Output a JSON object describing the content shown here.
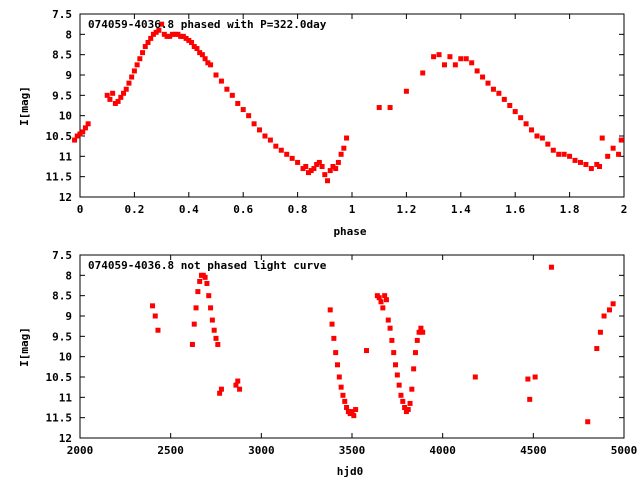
{
  "chart_data": [
    {
      "type": "scatter",
      "title": "074059-4036.8 phased with P=322.0day",
      "xlabel": "phase",
      "ylabel": "I[mag]",
      "xlim": [
        0,
        2
      ],
      "ylim": [
        7.5,
        12
      ],
      "y_inverted": true,
      "xticks": [
        "0",
        "0.2",
        "0.4",
        "0.6",
        "0.8",
        "1",
        "1.2",
        "1.4",
        "1.6",
        "1.8",
        "2"
      ],
      "yticks": [
        "7.5",
        "8",
        "8.5",
        "9",
        "9.5",
        "10",
        "10.5",
        "11",
        "11.5",
        "12"
      ],
      "color": "#ff0000",
      "series": [
        {
          "x": [
            -0.02,
            -0.01,
            0.0,
            0.01,
            0.02,
            0.03,
            0.1,
            0.11,
            0.12,
            0.13,
            0.14,
            0.15,
            0.16,
            0.17,
            0.18,
            0.19,
            0.2,
            0.21,
            0.22,
            0.23,
            0.24,
            0.25,
            0.26,
            0.27,
            0.28,
            0.29,
            0.3,
            0.31,
            0.32,
            0.33,
            0.34,
            0.35,
            0.36,
            0.37,
            0.38,
            0.39,
            0.4,
            0.41,
            0.42,
            0.43,
            0.44,
            0.45,
            0.46,
            0.47,
            0.48,
            0.5,
            0.52,
            0.54,
            0.56,
            0.58,
            0.6,
            0.62,
            0.64,
            0.66,
            0.68,
            0.7,
            0.72,
            0.74,
            0.76,
            0.78,
            0.8,
            0.82,
            0.83,
            0.84,
            0.85,
            0.86,
            0.87,
            0.88,
            0.89,
            0.9,
            0.91,
            0.92,
            0.93,
            0.94,
            0.95,
            0.96,
            0.97,
            0.98,
            1.1,
            1.14,
            1.2,
            1.26,
            1.3,
            1.32,
            1.34,
            1.36,
            1.38,
            1.4,
            1.42,
            1.44,
            1.46,
            1.48,
            1.5,
            1.52,
            1.54,
            1.56,
            1.58,
            1.6,
            1.62,
            1.64,
            1.66,
            1.68,
            1.7,
            1.72,
            1.74,
            1.76,
            1.78,
            1.8,
            1.82,
            1.84,
            1.86,
            1.88,
            1.9,
            1.91,
            1.92,
            1.94,
            1.96,
            1.98,
            1.99
          ],
          "y": [
            10.6,
            10.5,
            10.45,
            10.4,
            10.3,
            10.2,
            9.5,
            9.6,
            9.45,
            9.7,
            9.65,
            9.55,
            9.45,
            9.35,
            9.2,
            9.05,
            8.9,
            8.75,
            8.6,
            8.45,
            8.3,
            8.2,
            8.1,
            8.0,
            7.95,
            7.9,
            7.75,
            8.0,
            8.05,
            8.05,
            8.0,
            8.0,
            8.0,
            8.05,
            8.05,
            8.1,
            8.15,
            8.2,
            8.3,
            8.35,
            8.45,
            8.5,
            8.6,
            8.7,
            8.75,
            9.0,
            9.15,
            9.35,
            9.5,
            9.7,
            9.85,
            10.0,
            10.2,
            10.35,
            10.5,
            10.6,
            10.75,
            10.85,
            10.95,
            11.05,
            11.15,
            11.3,
            11.25,
            11.4,
            11.35,
            11.3,
            11.2,
            11.15,
            11.25,
            11.45,
            11.6,
            11.35,
            11.25,
            11.3,
            11.15,
            10.95,
            10.8,
            10.55,
            9.8,
            9.8,
            9.4,
            8.95,
            8.55,
            8.5,
            8.75,
            8.55,
            8.75,
            8.6,
            8.6,
            8.7,
            8.9,
            9.05,
            9.2,
            9.35,
            9.45,
            9.6,
            9.75,
            9.9,
            10.05,
            10.2,
            10.35,
            10.5,
            10.55,
            10.7,
            10.85,
            10.95,
            10.95,
            11.0,
            11.1,
            11.15,
            11.2,
            11.3,
            11.2,
            11.25,
            10.55,
            11.0,
            10.8,
            10.95,
            10.6
          ]
        }
      ]
    },
    {
      "type": "scatter",
      "title": "074059-4036.8 not phased light curve",
      "xlabel": "hjd0",
      "ylabel": "I[mag]",
      "xlim": [
        2000,
        5000
      ],
      "ylim": [
        7.5,
        12
      ],
      "y_inverted": true,
      "xticks": [
        "2000",
        "2500",
        "3000",
        "3500",
        "4000",
        "4500",
        "5000"
      ],
      "yticks": [
        "7.5",
        "8",
        "8.5",
        "9",
        "9.5",
        "10",
        "10.5",
        "11",
        "11.5",
        "12"
      ],
      "color": "#ff0000",
      "series": [
        {
          "x": [
            2400,
            2415,
            2430,
            2620,
            2630,
            2640,
            2650,
            2660,
            2670,
            2680,
            2690,
            2700,
            2710,
            2720,
            2730,
            2740,
            2750,
            2760,
            2770,
            2780,
            2860,
            2870,
            2880,
            3380,
            3390,
            3400,
            3410,
            3420,
            3430,
            3440,
            3450,
            3460,
            3470,
            3480,
            3490,
            3500,
            3510,
            3520,
            3580,
            3640,
            3650,
            3660,
            3670,
            3680,
            3690,
            3700,
            3710,
            3720,
            3730,
            3740,
            3750,
            3760,
            3770,
            3780,
            3790,
            3800,
            3810,
            3820,
            3830,
            3840,
            3850,
            3860,
            3870,
            3880,
            3890,
            4180,
            4470,
            4480,
            4510,
            4600,
            4800,
            4850,
            4870,
            4890,
            4920,
            4940
          ],
          "y": [
            8.75,
            9.0,
            9.35,
            9.7,
            9.2,
            8.8,
            8.4,
            8.15,
            8.0,
            8.0,
            8.05,
            8.2,
            8.5,
            8.8,
            9.1,
            9.35,
            9.55,
            9.7,
            10.9,
            10.8,
            10.7,
            10.6,
            10.8,
            8.85,
            9.2,
            9.55,
            9.9,
            10.2,
            10.5,
            10.75,
            10.95,
            11.1,
            11.25,
            11.35,
            11.4,
            11.35,
            11.45,
            11.3,
            9.85,
            8.5,
            8.55,
            8.65,
            8.8,
            8.5,
            8.6,
            9.1,
            9.3,
            9.6,
            9.9,
            10.2,
            10.45,
            10.7,
            10.95,
            11.1,
            11.25,
            11.35,
            11.3,
            11.15,
            10.8,
            10.3,
            9.9,
            9.6,
            9.4,
            9.3,
            9.4,
            10.5,
            10.55,
            11.05,
            10.5,
            7.8,
            11.6,
            9.8,
            9.4,
            9.0,
            8.85,
            8.7
          ]
        }
      ]
    }
  ]
}
